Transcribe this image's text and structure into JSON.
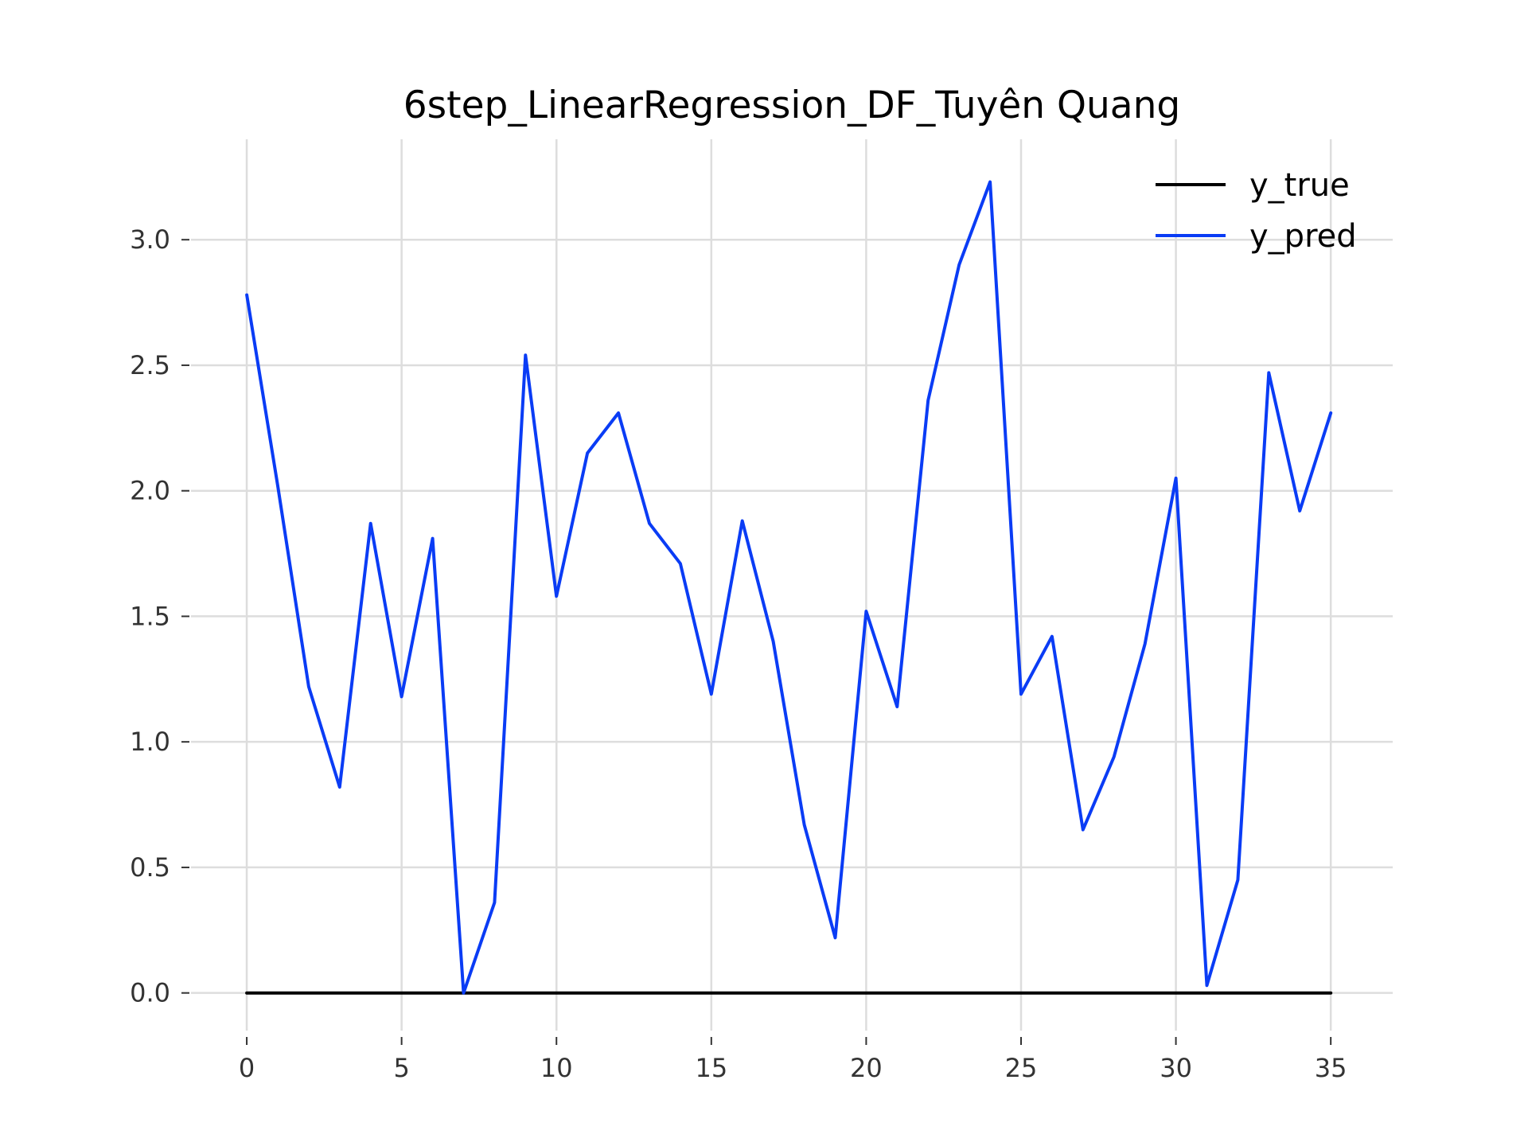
{
  "chart_data": {
    "type": "line",
    "title": "6step_LinearRegression_DF_Tuyên Quang",
    "xlabel": "",
    "ylabel": "",
    "x": [
      0,
      1,
      2,
      3,
      4,
      5,
      6,
      7,
      8,
      9,
      10,
      11,
      12,
      13,
      14,
      15,
      16,
      17,
      18,
      19,
      20,
      21,
      22,
      23,
      24,
      25,
      26,
      27,
      28,
      29,
      30,
      31,
      32,
      33,
      34,
      35
    ],
    "xlim": [
      -1.8,
      37.0
    ],
    "ylim": [
      -0.15,
      3.4
    ],
    "xticks": [
      0,
      5,
      10,
      15,
      20,
      25,
      30,
      35
    ],
    "xtick_labels": [
      "0",
      "5",
      "10",
      "15",
      "20",
      "25",
      "30",
      "35"
    ],
    "yticks": [
      0.0,
      0.5,
      1.0,
      1.5,
      2.0,
      2.5,
      3.0
    ],
    "ytick_labels": [
      "0.0",
      "0.5",
      "1.0",
      "1.5",
      "2.0",
      "2.5",
      "3.0"
    ],
    "grid": true,
    "legend_position": "top-right",
    "series": [
      {
        "name": "y_true",
        "color": "#000000",
        "values": [
          0,
          0,
          0,
          0,
          0,
          0,
          0,
          0,
          0,
          0,
          0,
          0,
          0,
          0,
          0,
          0,
          0,
          0,
          0,
          0,
          0,
          0,
          0,
          0,
          0,
          0,
          0,
          0,
          0,
          0,
          0,
          0,
          0,
          0,
          0,
          0
        ]
      },
      {
        "name": "y_pred",
        "color": "#0a3cf5",
        "values": [
          2.78,
          2.02,
          1.22,
          0.82,
          1.87,
          1.18,
          1.81,
          0.0,
          0.36,
          2.54,
          1.58,
          2.15,
          2.31,
          1.87,
          1.71,
          1.19,
          1.88,
          1.4,
          0.67,
          0.22,
          1.52,
          1.14,
          2.36,
          2.9,
          3.23,
          1.19,
          1.42,
          0.65,
          0.94,
          1.39,
          2.05,
          0.03,
          0.45,
          2.47,
          1.92,
          2.31
        ]
      }
    ]
  }
}
